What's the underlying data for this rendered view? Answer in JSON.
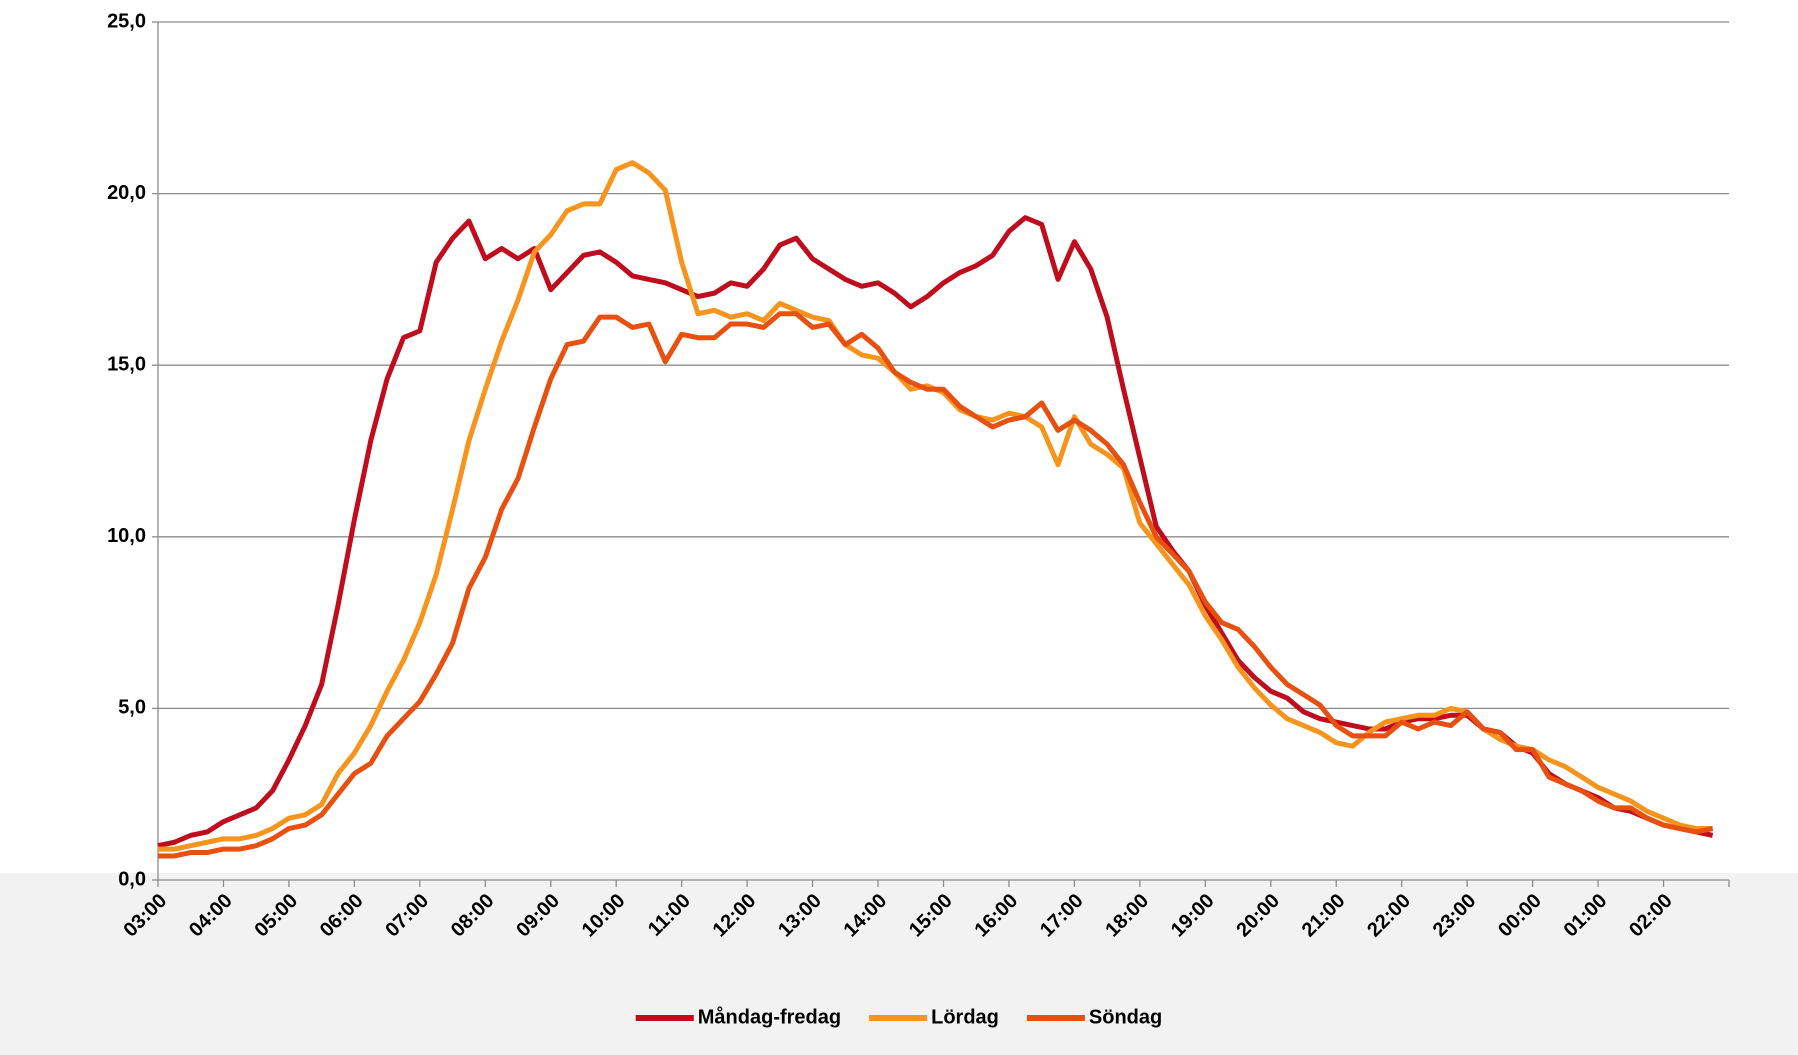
{
  "chart_data": {
    "type": "line",
    "categories": [
      "03:00",
      null,
      null,
      null,
      "04:00",
      null,
      null,
      null,
      "05:00",
      null,
      null,
      null,
      "06:00",
      null,
      null,
      null,
      "07:00",
      null,
      null,
      null,
      "08:00",
      null,
      null,
      null,
      "09:00",
      null,
      null,
      null,
      "10:00",
      null,
      null,
      null,
      "11:00",
      null,
      null,
      null,
      "12:00",
      null,
      null,
      null,
      "13:00",
      null,
      null,
      null,
      "14:00",
      null,
      null,
      null,
      "15:00",
      null,
      null,
      null,
      "16:00",
      null,
      null,
      null,
      "17:00",
      null,
      null,
      null,
      "18:00",
      null,
      null,
      null,
      "19:00",
      null,
      null,
      null,
      "20:00",
      null,
      null,
      null,
      "21:00",
      null,
      null,
      null,
      "22:00",
      null,
      null,
      null,
      "23:00",
      null,
      null,
      null,
      "00:00",
      null,
      null,
      null,
      "01:00",
      null,
      null,
      null,
      "02:00",
      null,
      null,
      null
    ],
    "series": [
      {
        "name": "Måndag-fredag",
        "color": "#c00d1e",
        "values": [
          1.0,
          1.1,
          1.3,
          1.4,
          1.7,
          1.9,
          2.1,
          2.6,
          3.5,
          4.5,
          5.7,
          8.0,
          10.5,
          12.8,
          14.6,
          15.8,
          16.0,
          18.0,
          18.7,
          19.2,
          18.1,
          18.4,
          18.1,
          18.4,
          17.2,
          17.7,
          18.2,
          18.3,
          18.0,
          17.6,
          17.5,
          17.4,
          17.2,
          17.0,
          17.1,
          17.4,
          17.3,
          17.8,
          18.5,
          18.7,
          18.1,
          17.8,
          17.5,
          17.3,
          17.4,
          17.1,
          16.7,
          17.0,
          17.4,
          17.7,
          17.9,
          18.2,
          18.9,
          19.3,
          19.1,
          17.5,
          18.6,
          17.8,
          16.4,
          14.3,
          12.3,
          10.3,
          9.6,
          9.0,
          8.0,
          7.2,
          6.4,
          5.9,
          5.5,
          5.3,
          4.9,
          4.7,
          4.6,
          4.5,
          4.4,
          4.4,
          4.6,
          4.7,
          4.7,
          4.8,
          4.8,
          4.4,
          4.3,
          3.9,
          3.7,
          3.1,
          2.8,
          2.6,
          2.4,
          2.1,
          2.0,
          1.8,
          1.6,
          1.5,
          1.4,
          1.3
        ]
      },
      {
        "name": "Lördag",
        "color": "#f7941d",
        "values": [
          0.9,
          0.9,
          1.0,
          1.1,
          1.2,
          1.2,
          1.3,
          1.5,
          1.8,
          1.9,
          2.2,
          3.1,
          3.7,
          4.5,
          5.5,
          6.4,
          7.5,
          8.9,
          10.8,
          12.8,
          14.3,
          15.7,
          16.9,
          18.3,
          18.8,
          19.5,
          19.7,
          19.7,
          20.7,
          20.9,
          20.6,
          20.1,
          18.0,
          16.5,
          16.6,
          16.4,
          16.5,
          16.3,
          16.8,
          16.6,
          16.4,
          16.3,
          15.6,
          15.3,
          15.2,
          14.8,
          14.3,
          14.4,
          14.2,
          13.7,
          13.5,
          13.4,
          13.6,
          13.5,
          13.2,
          12.1,
          13.5,
          12.7,
          12.4,
          12.0,
          10.4,
          9.8,
          9.2,
          8.6,
          7.7,
          7.0,
          6.2,
          5.6,
          5.1,
          4.7,
          4.5,
          4.3,
          4.0,
          3.9,
          4.3,
          4.6,
          4.7,
          4.8,
          4.8,
          5.0,
          4.9,
          4.4,
          4.1,
          3.9,
          3.8,
          3.5,
          3.3,
          3.0,
          2.7,
          2.5,
          2.3,
          2.0,
          1.8,
          1.6,
          1.5,
          1.5
        ]
      },
      {
        "name": "Söndag",
        "color": "#e8500f",
        "values": [
          0.7,
          0.7,
          0.8,
          0.8,
          0.9,
          0.9,
          1.0,
          1.2,
          1.5,
          1.6,
          1.9,
          2.5,
          3.1,
          3.4,
          4.2,
          4.7,
          5.2,
          6.0,
          6.9,
          8.5,
          9.4,
          10.8,
          11.7,
          13.2,
          14.6,
          15.6,
          15.7,
          16.4,
          16.4,
          16.1,
          16.2,
          15.1,
          15.9,
          15.8,
          15.8,
          16.2,
          16.2,
          16.1,
          16.5,
          16.5,
          16.1,
          16.2,
          15.6,
          15.9,
          15.5,
          14.8,
          14.5,
          14.3,
          14.3,
          13.8,
          13.5,
          13.2,
          13.4,
          13.5,
          13.9,
          13.1,
          13.4,
          13.1,
          12.7,
          12.1,
          11.0,
          10.0,
          9.5,
          9.0,
          8.1,
          7.5,
          7.3,
          6.8,
          6.2,
          5.7,
          5.4,
          5.1,
          4.5,
          4.2,
          4.2,
          4.2,
          4.6,
          4.4,
          4.6,
          4.5,
          4.9,
          4.4,
          4.3,
          3.8,
          3.8,
          3.0,
          2.8,
          2.6,
          2.3,
          2.1,
          2.1,
          1.8,
          1.6,
          1.5,
          1.4,
          1.5
        ]
      }
    ],
    "ylim": [
      0,
      25
    ],
    "yticks": [
      {
        "value": 0,
        "label": "0,0"
      },
      {
        "value": 5,
        "label": "5,0"
      },
      {
        "value": 10,
        "label": "10,0"
      },
      {
        "value": 15,
        "label": "15,0"
      },
      {
        "value": 20,
        "label": "20,0"
      },
      {
        "value": 25,
        "label": "25,0"
      }
    ],
    "grid": true,
    "legend": "bottom"
  }
}
